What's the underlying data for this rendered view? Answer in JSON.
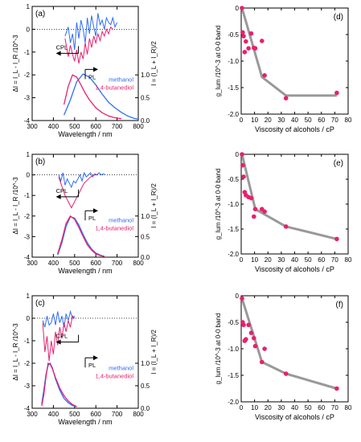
{
  "chart_data": [
    {
      "type": "line",
      "panel": "(a)",
      "xlabel": "Wavelength / nm",
      "ylabel_left": "ΔI = I_L - I_R /10^-3",
      "ylabel_right": "I = (I_L + I_R)/2",
      "xlim": [
        300,
        800
      ],
      "xticks": [
        "300",
        "400",
        "500",
        "600",
        "700",
        "800"
      ],
      "ylim_left": [
        -4,
        1
      ],
      "yticks_left": [
        "-4",
        "-3",
        "-2",
        "-1",
        "0",
        "1"
      ],
      "ylim_right": [
        0,
        2.5
      ],
      "yticks_right": [
        "0.0",
        "0.5",
        "1.0"
      ],
      "annotations": [
        "CPL",
        "PL"
      ],
      "series": [
        {
          "name": "methanol",
          "color": "#2e6ef5",
          "cpl": {
            "x": [
              455,
              470,
              480,
              490,
              500,
              510,
              520,
              530,
              540,
              550,
              560,
              570,
              580,
              590,
              600,
              610,
              620,
              630,
              640,
              650,
              660,
              670,
              680,
              690,
              700
            ],
            "y": [
              -0.3,
              0.1,
              -0.6,
              -0.2,
              -0.9,
              0.3,
              -0.4,
              0.4,
              0.0,
              -0.6,
              0.5,
              -0.2,
              0.6,
              0.1,
              -0.3,
              0.7,
              0.2,
              0.4,
              0.0,
              0.5,
              0.3,
              0.2,
              0.5,
              0.1,
              0.3
            ]
          },
          "pl": {
            "x": [
              450,
              480,
              510,
              540,
              570,
              600,
              630,
              660,
              690,
              720,
              750,
              780,
              800
            ],
            "y": [
              0.12,
              0.45,
              0.85,
              1.02,
              0.95,
              0.78,
              0.58,
              0.4,
              0.28,
              0.18,
              0.1,
              0.05,
              0.03
            ]
          }
        },
        {
          "name": "1,4-butanediol",
          "color": "#e8206e",
          "cpl": {
            "x": [
              455,
              470,
              480,
              490,
              500,
              510,
              520,
              530,
              540,
              550,
              560,
              570,
              580,
              590,
              600,
              610,
              620,
              630,
              640,
              650,
              660,
              670,
              680
            ],
            "y": [
              -0.4,
              -1.2,
              -0.7,
              -1.1,
              -1.4,
              -0.9,
              -1.5,
              -1.0,
              -1.3,
              -0.6,
              -1.1,
              -0.4,
              -0.8,
              -0.3,
              -0.6,
              -0.2,
              -0.5,
              -0.1,
              -0.3,
              0.0,
              -0.2,
              0.1,
              0.0
            ]
          },
          "pl": {
            "x": [
              450,
              470,
              490,
              510,
              530,
              550,
              570,
              600,
              630,
              660,
              690,
              720
            ],
            "y": [
              0.35,
              0.75,
              1.0,
              0.95,
              0.78,
              0.6,
              0.45,
              0.28,
              0.17,
              0.1,
              0.06,
              0.04
            ]
          }
        }
      ]
    },
    {
      "type": "scatter",
      "panel": "(d)",
      "xlabel": "Viscosity of alcohols / cP",
      "ylabel": "g_lum /10^-3 at 0-0 band",
      "xlim": [
        0,
        80
      ],
      "xticks": [
        "0",
        "10",
        "20",
        "30",
        "40",
        "50",
        "60",
        "70",
        "80"
      ],
      "ylim": [
        -2.0,
        0.0
      ],
      "yticks": [
        "0",
        "-0.5",
        "-1.0",
        "-1.5",
        "-2.0"
      ],
      "points": {
        "x": [
          0.6,
          1.1,
          1.8,
          2.6,
          3.5,
          5.5,
          7.5,
          9.5,
          10.5,
          15.5,
          17.5,
          33.5,
          71.5
        ],
        "y": [
          0.0,
          -0.46,
          -0.53,
          -0.83,
          -0.63,
          -0.76,
          -0.48,
          -0.75,
          -0.76,
          -0.62,
          -1.27,
          -1.7,
          -1.6
        ]
      },
      "trend": {
        "x": [
          0.6,
          15.5,
          33.5,
          71.5
        ],
        "y": [
          0.0,
          -1.3,
          -1.65,
          -1.65
        ]
      }
    },
    {
      "type": "line",
      "panel": "(b)",
      "xlabel": "Wavelength / nm",
      "ylabel_left": "ΔI = I_L - I_R /10^-3",
      "ylabel_right": "I = (I_L + I_R)/2",
      "xlim": [
        300,
        800
      ],
      "xticks": [
        "300",
        "400",
        "500",
        "600",
        "700",
        "800"
      ],
      "ylim_left": [
        -4,
        1
      ],
      "yticks_left": [
        "-4",
        "-3",
        "-2",
        "-1",
        "0",
        "1"
      ],
      "ylim_right": [
        0,
        2.5
      ],
      "yticks_right": [
        "0.0",
        "0.5",
        "1.0"
      ],
      "annotations": [
        "CPL",
        "PL"
      ],
      "series": [
        {
          "name": "methanol",
          "color": "#2e6ef5",
          "cpl": {
            "x": [
              425,
              435,
              445,
              455,
              465,
              475,
              485,
              495,
              505,
              515,
              525,
              535,
              545,
              555,
              565,
              575,
              585,
              595,
              605,
              615,
              625,
              635,
              645
            ],
            "y": [
              0.0,
              -0.3,
              0.1,
              -0.5,
              -0.2,
              -0.4,
              -0.6,
              -0.3,
              -0.4,
              -0.2,
              0.0,
              -0.3,
              0.1,
              -0.1,
              0.0,
              0.1,
              -0.1,
              0.05,
              0.0,
              0.1,
              0.0,
              0.05,
              0.0
            ]
          },
          "pl": {
            "x": [
              420,
              440,
              460,
              480,
              500,
              520,
              540,
              560,
              580,
              600,
              620,
              640
            ],
            "y": [
              0.05,
              0.35,
              0.75,
              0.98,
              0.95,
              0.78,
              0.55,
              0.35,
              0.2,
              0.1,
              0.05,
              0.02
            ]
          }
        },
        {
          "name": "1,4-butanediol",
          "color": "#e8206e",
          "cpl": {
            "x": [
              425,
              435,
              445,
              455,
              465,
              475,
              485,
              495,
              505,
              515,
              525,
              535,
              545,
              555,
              565,
              575,
              585,
              595,
              605
            ],
            "y": [
              -0.1,
              -0.4,
              -0.7,
              -1.0,
              -1.2,
              -1.4,
              -1.6,
              -1.4,
              -1.2,
              -1.0,
              -0.8,
              -0.6,
              -0.4,
              -0.3,
              -0.2,
              -0.1,
              -0.05,
              0.0,
              0.0
            ]
          },
          "pl": {
            "x": [
              420,
              440,
              460,
              480,
              500,
              520,
              540,
              560,
              580,
              600,
              620,
              640
            ],
            "y": [
              0.08,
              0.42,
              0.82,
              1.0,
              0.92,
              0.72,
              0.5,
              0.3,
              0.17,
              0.08,
              0.04,
              0.02
            ]
          }
        }
      ]
    },
    {
      "type": "scatter",
      "panel": "(e)",
      "xlabel": "Viscosity of alcohols / cP",
      "ylabel": "g_lum /10^-3 at 0-0 band",
      "xlim": [
        0,
        80
      ],
      "xticks": [
        "0",
        "10",
        "20",
        "30",
        "40",
        "50",
        "60",
        "70",
        "80"
      ],
      "ylim": [
        -2.0,
        0.0
      ],
      "yticks": [
        "0",
        "-0.5",
        "-1.0",
        "-1.5",
        "-2.0"
      ],
      "points": {
        "x": [
          0.6,
          1.1,
          1.8,
          2.6,
          3.5,
          5.5,
          7.5,
          9.5,
          10.5,
          15.5,
          17.5,
          33.5,
          71.5
        ],
        "y": [
          0.0,
          -0.22,
          -0.45,
          -0.76,
          -0.82,
          -0.86,
          -0.88,
          -1.25,
          -1.1,
          -1.1,
          -1.15,
          -1.45,
          -1.7
        ]
      },
      "trend": {
        "x": [
          0.6,
          10.5,
          33.5,
          71.5
        ],
        "y": [
          0.0,
          -1.1,
          -1.45,
          -1.7
        ]
      }
    },
    {
      "type": "line",
      "panel": "(c)",
      "xlabel": "Wavelength / nm",
      "ylabel_left": "ΔI = I_L - I_R /10^-3",
      "ylabel_right": "I = (I_L + I_R)/2",
      "xlim": [
        300,
        800
      ],
      "xticks": [
        "300",
        "400",
        "500",
        "600",
        "700",
        "800"
      ],
      "ylim_left": [
        -4,
        1
      ],
      "yticks_left": [
        "-4",
        "-3",
        "-2",
        "-1",
        "0",
        "1"
      ],
      "ylim_right": [
        0,
        2.5
      ],
      "yticks_right": [
        "0.0",
        "0.5",
        "1.0"
      ],
      "annotations": [
        "CPL",
        "PL"
      ],
      "series": [
        {
          "name": "methanol",
          "color": "#2e6ef5",
          "cpl": {
            "x": [
              350,
              360,
              370,
              380,
              390,
              400,
              410,
              420,
              430,
              440,
              450,
              460,
              470,
              480,
              490,
              500
            ],
            "y": [
              -0.1,
              -0.4,
              0.1,
              -0.3,
              -0.2,
              0.2,
              -0.3,
              0.3,
              -0.2,
              0.1,
              -0.4,
              0.2,
              -0.1,
              0.3,
              0.0,
              0.1
            ]
          },
          "pl": {
            "x": [
              345,
              355,
              365,
              375,
              385,
              395,
              410,
              430,
              450,
              470,
              490,
              510
            ],
            "y": [
              0.1,
              0.4,
              0.75,
              0.95,
              1.0,
              0.9,
              0.65,
              0.4,
              0.22,
              0.12,
              0.06,
              0.03
            ]
          }
        },
        {
          "name": "1,4-butanediol",
          "color": "#e8206e",
          "cpl": {
            "x": [
              350,
              360,
              370,
              380,
              390,
              400,
              410,
              420,
              430,
              440,
              450,
              460,
              470,
              480,
              490,
              500
            ],
            "y": [
              -0.2,
              -1.5,
              -0.8,
              -1.9,
              -1.0,
              -1.6,
              -0.6,
              -1.2,
              -0.4,
              -0.9,
              -0.2,
              -0.6,
              -0.1,
              -0.4,
              0.1,
              0.0
            ]
          },
          "pl": {
            "x": [
              345,
              355,
              365,
              375,
              385,
              395,
              410,
              430,
              450,
              470,
              490,
              510
            ],
            "y": [
              0.05,
              0.3,
              0.7,
              1.0,
              0.98,
              0.88,
              0.68,
              0.45,
              0.28,
              0.16,
              0.08,
              0.04
            ]
          }
        }
      ]
    },
    {
      "type": "scatter",
      "panel": "(f)",
      "xlabel": "Viscosity of alcohols / cP",
      "ylabel": "g_lum /10^-3 at 0-0 band",
      "xlim": [
        0,
        80
      ],
      "xticks": [
        "0",
        "10",
        "20",
        "30",
        "40",
        "50",
        "60",
        "70",
        "80"
      ],
      "ylim": [
        -2.0,
        0.0
      ],
      "yticks": [
        "0",
        "-0.5",
        "-1.0",
        "-1.5",
        "-2.0"
      ],
      "points": {
        "x": [
          0.6,
          1.1,
          1.8,
          2.6,
          3.5,
          5.5,
          7.5,
          9.5,
          10.5,
          15.5,
          17.5,
          33.5,
          71.5
        ],
        "y": [
          -0.05,
          -0.5,
          -0.55,
          -0.85,
          -0.82,
          -0.55,
          -0.7,
          -0.8,
          -0.95,
          -1.25,
          -1.0,
          -1.47,
          -1.75
        ]
      },
      "trend": {
        "x": [
          0.6,
          15.5,
          33.5,
          71.5
        ],
        "y": [
          -0.05,
          -1.25,
          -1.47,
          -1.75
        ]
      }
    }
  ]
}
